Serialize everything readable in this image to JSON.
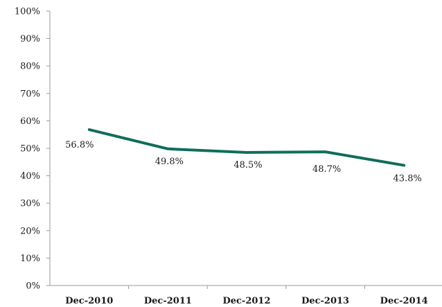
{
  "chart_data": {
    "type": "line",
    "categories": [
      "Dec-2010",
      "Dec-2011",
      "Dec-2012",
      "Dec-2013",
      "Dec-2014"
    ],
    "series": [
      {
        "values": [
          56.8,
          49.8,
          48.5,
          48.7,
          43.8
        ],
        "labels": [
          "56.8%",
          "49.8%",
          "48.5%",
          "48.7%",
          "43.8%"
        ],
        "color": "#0e6e5c"
      }
    ],
    "y_ticks": [
      "0%",
      "10%",
      "20%",
      "30%",
      "40%",
      "50%",
      "60%",
      "70%",
      "80%",
      "90%",
      "100%"
    ],
    "ylim": [
      0,
      100
    ],
    "grid": false,
    "legend": "none"
  }
}
